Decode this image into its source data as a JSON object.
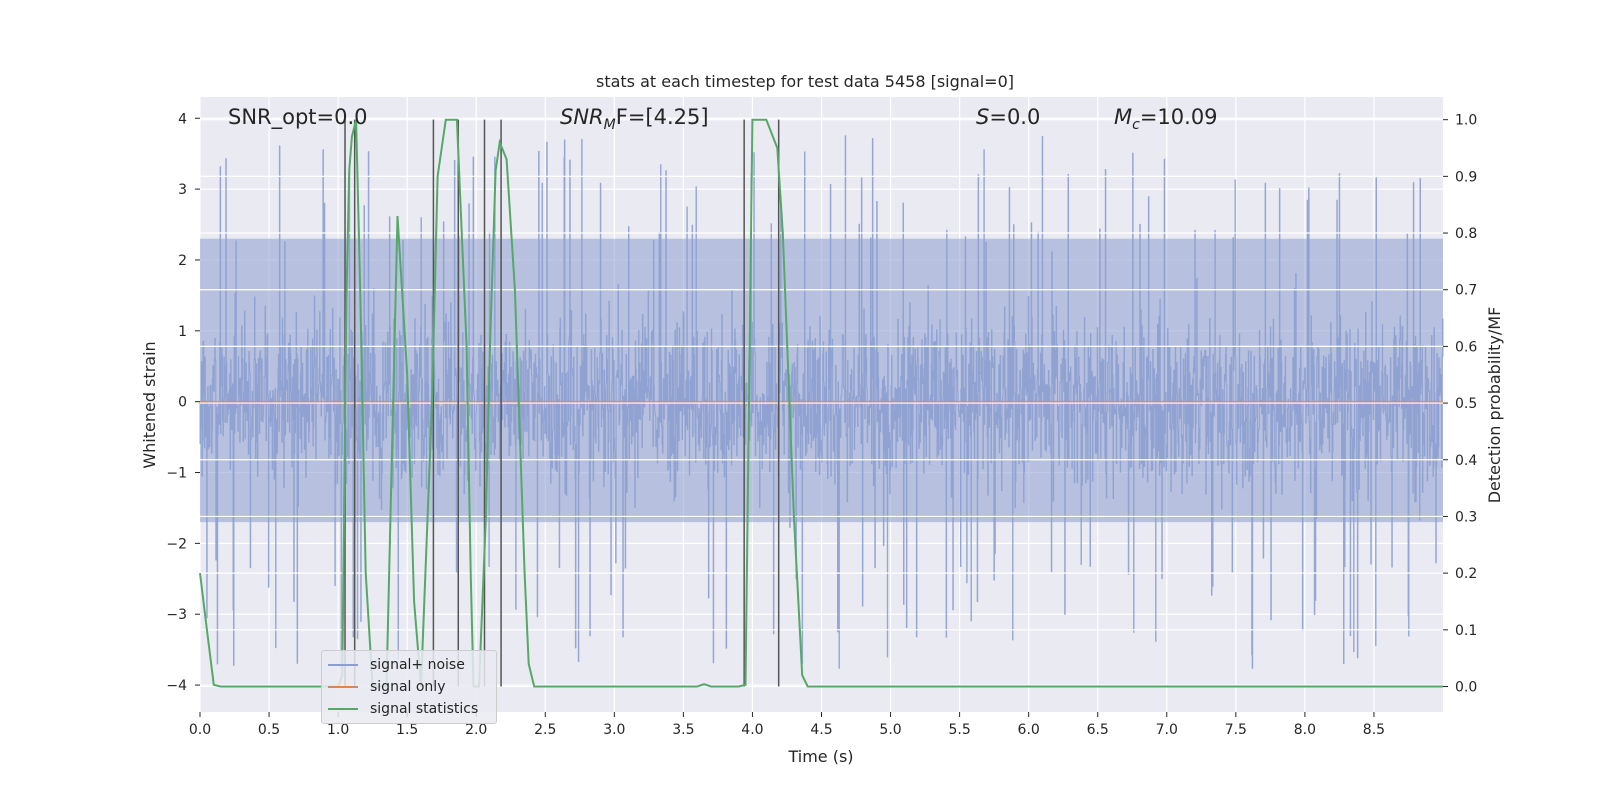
{
  "chart_data": {
    "type": "line",
    "title": "stats at each timestep for test data 5458 [signal=0]",
    "xlabel": "Time (s)",
    "ylabel_left": "Whitened strain",
    "ylabel_right": "Detection probability/MF",
    "xlim": [
      0.0,
      9.0
    ],
    "ylim_left": [
      -4.38,
      4.3
    ],
    "ylim_right": [
      -0.045,
      1.04
    ],
    "x_ticks": [
      "0.0",
      "0.5",
      "1.0",
      "1.5",
      "2.0",
      "2.5",
      "3.0",
      "3.5",
      "4.0",
      "4.5",
      "5.0",
      "5.5",
      "6.0",
      "6.5",
      "7.0",
      "7.5",
      "8.0",
      "8.5"
    ],
    "y_ticks_left": [
      "4",
      "3",
      "2",
      "1",
      "0",
      "−1",
      "−2",
      "−3",
      "−4"
    ],
    "y_ticks_right": [
      "1.0",
      "0.9",
      "0.8",
      "0.7",
      "0.6",
      "0.5",
      "0.4",
      "0.3",
      "0.2",
      "0.1",
      "0.0"
    ],
    "annotations": {
      "snr_opt": "SNR_opt=0.0",
      "snr_mf_sym": "SNR",
      "snr_mf_sub": "M",
      "snr_mf_tail": "F=[4.25]",
      "s_sym": "S",
      "s_val": "=0.0",
      "mc_sym": "M",
      "mc_sub": "c",
      "mc_val": "=10.09"
    },
    "legend": {
      "position": "lower-left",
      "entries": [
        {
          "label": "signal+ noise",
          "color": "#8c9ecf"
        },
        {
          "label": "signal only",
          "color": "#dd8452"
        },
        {
          "label": "signal statistics",
          "color": "#55a868"
        }
      ]
    },
    "series": [
      {
        "name": "signal+ noise",
        "axis": "left",
        "color": "#8c9ecf",
        "style": "dense noise band",
        "typical_range": [
          -1.7,
          2.3
        ],
        "extreme_range": [
          -4.0,
          4.0
        ]
      },
      {
        "name": "signal only",
        "axis": "left",
        "color": "#dd8452",
        "x": [
          0.0,
          9.0
        ],
        "y": [
          0.0,
          0.0
        ]
      },
      {
        "name": "signal statistics",
        "axis": "right",
        "color": "#55a868",
        "x": [
          0.0,
          0.05,
          0.1,
          0.15,
          0.3,
          1.0,
          1.03,
          1.06,
          1.08,
          1.1,
          1.13,
          1.16,
          1.2,
          1.25,
          1.35,
          1.43,
          1.5,
          1.55,
          1.6,
          1.68,
          1.72,
          1.78,
          1.86,
          1.93,
          1.96,
          1.98,
          2.02,
          2.07,
          2.1,
          2.14,
          2.17,
          2.22,
          2.28,
          2.35,
          2.38,
          2.42,
          2.5,
          3.6,
          3.65,
          3.7,
          3.9,
          3.95,
          3.98,
          4.0,
          4.1,
          4.18,
          4.22,
          4.3,
          4.36,
          4.4,
          4.5,
          9.0
        ],
        "y": [
          0.2,
          0.1,
          0.003,
          0.0,
          0.0,
          0.0,
          0.02,
          0.68,
          0.91,
          0.97,
          1.0,
          0.7,
          0.2,
          0.0,
          0.0,
          0.83,
          0.55,
          0.15,
          0.0,
          0.5,
          0.9,
          1.0,
          1.0,
          0.6,
          0.2,
          0.0,
          0.0,
          0.3,
          0.6,
          0.91,
          0.96,
          0.93,
          0.7,
          0.2,
          0.04,
          0.0,
          0.0,
          0.0,
          0.004,
          0.0,
          0.0,
          0.003,
          0.6,
          1.0,
          1.0,
          0.95,
          0.8,
          0.3,
          0.02,
          0.0,
          0.0,
          0.0
        ]
      },
      {
        "name": "event markers",
        "axis": "right",
        "color": "#555555",
        "style": "vertical lines",
        "x": [
          1.05,
          1.12,
          1.69,
          1.87,
          2.06,
          2.18,
          3.94,
          4.19
        ]
      }
    ]
  }
}
